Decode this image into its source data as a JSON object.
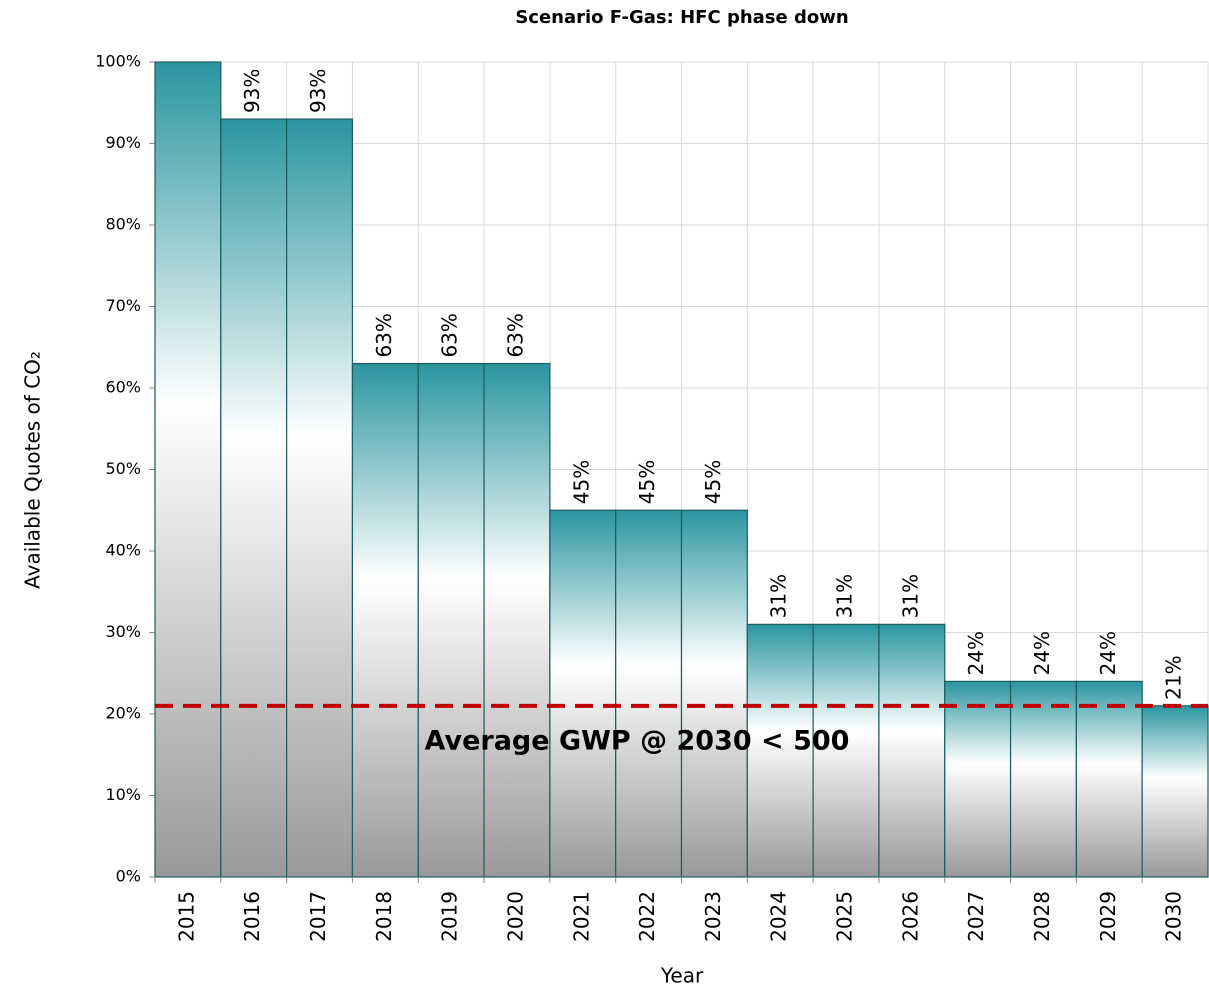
{
  "chart_data": {
    "type": "bar",
    "title": "Scenario F-Gas: HFC phase down",
    "x_label": "Year",
    "y_label": "Available Quotes of CO₂",
    "categories": [
      "2015",
      "2016",
      "2017",
      "2018",
      "2019",
      "2020",
      "2021",
      "2022",
      "2023",
      "2024",
      "2025",
      "2026",
      "2027",
      "2028",
      "2029",
      "2030"
    ],
    "values": [
      100,
      93,
      93,
      63,
      63,
      63,
      45,
      45,
      45,
      31,
      31,
      31,
      24,
      24,
      24,
      21
    ],
    "value_labels": [
      null,
      "93%",
      "93%",
      "63%",
      "63%",
      "63%",
      "45%",
      "45%",
      "45%",
      "31%",
      "31%",
      "31%",
      "24%",
      "24%",
      "24%",
      "21%"
    ],
    "color": "#2a95a0",
    "ylim": [
      0,
      100
    ],
    "yticks": [
      {
        "value": 0,
        "label": "0%"
      },
      {
        "value": 10,
        "label": "10%"
      },
      {
        "value": 20,
        "label": "20%"
      },
      {
        "value": 30,
        "label": "30%"
      },
      {
        "value": 40,
        "label": "40%"
      },
      {
        "value": 50,
        "label": "50%"
      },
      {
        "value": 60,
        "label": "60%"
      },
      {
        "value": 70,
        "label": "70%"
      },
      {
        "value": 80,
        "label": "80%"
      },
      {
        "value": 90,
        "label": "90%"
      },
      {
        "value": 100,
        "label": "100%"
      }
    ],
    "grid": true,
    "reference_line": {
      "value": 21,
      "color": "#c00000",
      "label": "Average GWP @ 2030 < 500"
    }
  }
}
